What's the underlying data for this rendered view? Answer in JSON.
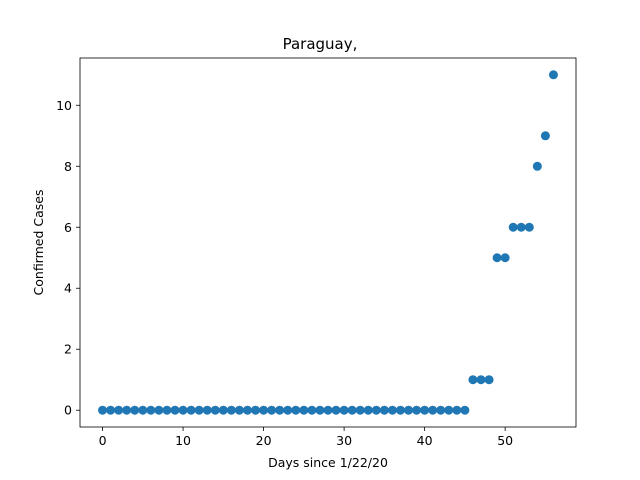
{
  "chart_data": {
    "type": "scatter",
    "title": "Paraguay,",
    "xlabel": "Days since 1/22/20",
    "ylabel": "Confirmed Cases",
    "xlim": [
      -2.8,
      58.8
    ],
    "ylim": [
      -0.55,
      11.55
    ],
    "xticks": [
      0,
      10,
      20,
      30,
      40,
      50
    ],
    "yticks": [
      0,
      2,
      4,
      6,
      8,
      10
    ],
    "grid": false,
    "color": "#1f77b4",
    "x": [
      0,
      1,
      2,
      3,
      4,
      5,
      6,
      7,
      8,
      9,
      10,
      11,
      12,
      13,
      14,
      15,
      16,
      17,
      18,
      19,
      20,
      21,
      22,
      23,
      24,
      25,
      26,
      27,
      28,
      29,
      30,
      31,
      32,
      33,
      34,
      35,
      36,
      37,
      38,
      39,
      40,
      41,
      42,
      43,
      44,
      45,
      46,
      47,
      48,
      49,
      50,
      51,
      52,
      53,
      54,
      55,
      56
    ],
    "y": [
      0,
      0,
      0,
      0,
      0,
      0,
      0,
      0,
      0,
      0,
      0,
      0,
      0,
      0,
      0,
      0,
      0,
      0,
      0,
      0,
      0,
      0,
      0,
      0,
      0,
      0,
      0,
      0,
      0,
      0,
      0,
      0,
      0,
      0,
      0,
      0,
      0,
      0,
      0,
      0,
      0,
      0,
      0,
      0,
      0,
      0,
      1,
      1,
      1,
      5,
      5,
      6,
      6,
      6,
      8,
      9,
      11
    ]
  }
}
